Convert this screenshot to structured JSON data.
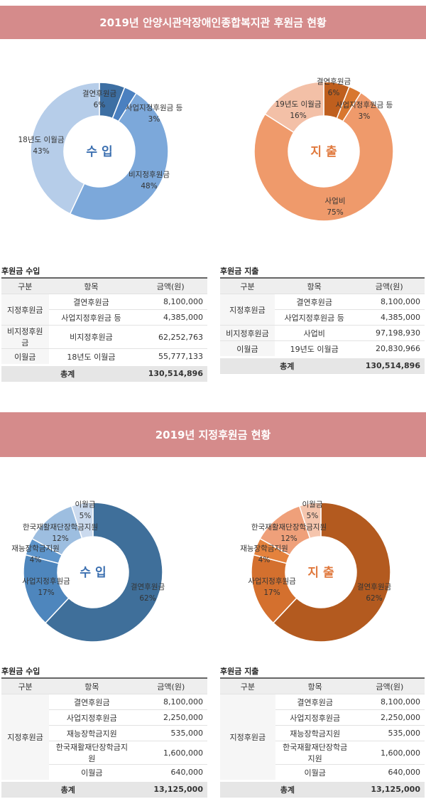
{
  "sections": [
    {
      "title": "2019년 안양시관악장애인종합복지관 후원금 현황"
    },
    {
      "title": "2019년 지정후원금 현황"
    }
  ],
  "chart_data": [
    {
      "type": "pie",
      "center_label": "수 입",
      "center_color": "#3b6fb0",
      "categories": [
        "결연후원금",
        "사업지정후원금 등",
        "비지정후원금",
        "18년도 이월금"
      ],
      "values": [
        6,
        3,
        48,
        43
      ],
      "value_labels": [
        "6%",
        "3%",
        "48%",
        "43%"
      ],
      "colors": [
        "#3d6fa3",
        "#4a80c0",
        "#7ca8da",
        "#b6cde9"
      ]
    },
    {
      "type": "pie",
      "center_label": "지 출",
      "center_color": "#e0793d",
      "categories": [
        "결연후원금",
        "사업지정후원금 등",
        "사업비",
        "19년도 이월금"
      ],
      "values": [
        6,
        3,
        75,
        16
      ],
      "value_labels": [
        "6%",
        "3%",
        "75%",
        "16%"
      ],
      "colors": [
        "#bf5f1e",
        "#d8772f",
        "#ef9a6b",
        "#f3c0a7"
      ]
    },
    {
      "type": "pie",
      "center_label": "수 입",
      "center_color": "#3b6fb0",
      "categories": [
        "결연후원금",
        "사업지정후원금",
        "재능장학금지원",
        "한국재활재단장학금지원",
        "이월금"
      ],
      "values": [
        62,
        17,
        4,
        12,
        5
      ],
      "value_labels": [
        "62%",
        "17%",
        "4%",
        "12%",
        "5%"
      ],
      "colors": [
        "#3f6f9a",
        "#4e86bd",
        "#5e95cb",
        "#9dbee0",
        "#cbdaee"
      ]
    },
    {
      "type": "pie",
      "center_label": "지 출",
      "center_color": "#e0793d",
      "categories": [
        "결연후원금",
        "사업지정후원금",
        "재능장학금지원",
        "한국재활재단장학금지원",
        "이월금"
      ],
      "values": [
        62,
        17,
        4,
        12,
        5
      ],
      "value_labels": [
        "62%",
        "17%",
        "4%",
        "12%",
        "5%"
      ],
      "colors": [
        "#b35a1f",
        "#d4702e",
        "#e4823d",
        "#efa07a",
        "#f5c5ad"
      ]
    }
  ],
  "tables": [
    {
      "title": "후원금 수입",
      "headers": [
        "구분",
        "항목",
        "금액(원)"
      ],
      "groups": [
        {
          "name": "지정후원금",
          "items": [
            {
              "item": "결연후원금",
              "amount": "8,100,000"
            },
            {
              "item": "사업지정후원금 등",
              "amount": "4,385,000"
            }
          ]
        },
        {
          "name": "비지정후원금",
          "items": [
            {
              "item": "비지정후원금",
              "amount": "62,252,763"
            }
          ]
        },
        {
          "name": "이월금",
          "items": [
            {
              "item": "18년도 이월금",
              "amount": "55,777,133"
            }
          ]
        }
      ],
      "total": {
        "label": "총계",
        "amount": "130,514,896"
      }
    },
    {
      "title": "후원금 지출",
      "headers": [
        "구분",
        "항목",
        "금액(원)"
      ],
      "groups": [
        {
          "name": "지정후원금",
          "items": [
            {
              "item": "결연후원금",
              "amount": "8,100,000"
            },
            {
              "item": "사업지정후원금 등",
              "amount": "4,385,000"
            }
          ]
        },
        {
          "name": "비지정후원금",
          "items": [
            {
              "item": "사업비",
              "amount": "97,198,930"
            }
          ]
        },
        {
          "name": "이월금",
          "items": [
            {
              "item": "19년도 이월금",
              "amount": "20,830,966"
            }
          ]
        }
      ],
      "total": {
        "label": "총계",
        "amount": "130,514,896"
      }
    },
    {
      "title": "후원금 수입",
      "headers": [
        "구분",
        "항목",
        "금액(원)"
      ],
      "groups": [
        {
          "name": "지정후원금",
          "items": [
            {
              "item": "결연후원금",
              "amount": "8,100,000"
            },
            {
              "item": "사업지정후원금",
              "amount": "2,250,000"
            },
            {
              "item": "재능장학금지원",
              "amount": "535,000"
            },
            {
              "item": "한국재활재단장학금지원",
              "amount": "1,600,000"
            },
            {
              "item": "이월금",
              "amount": "640,000"
            }
          ]
        }
      ],
      "total": {
        "label": "총계",
        "amount": "13,125,000"
      }
    },
    {
      "title": "후원금 지출",
      "headers": [
        "구분",
        "항목",
        "금액(원)"
      ],
      "groups": [
        {
          "name": "지정후원금",
          "items": [
            {
              "item": "결연후원금",
              "amount": "8,100,000"
            },
            {
              "item": "사업지정후원금",
              "amount": "2,250,000"
            },
            {
              "item": "재능장학금지원",
              "amount": "535,000"
            },
            {
              "item": "한국재활재단장학금지원",
              "amount": "1,600,000"
            },
            {
              "item": "이월금",
              "amount": "640,000"
            }
          ]
        }
      ],
      "total": {
        "label": "총계",
        "amount": "13,125,000"
      }
    }
  ]
}
